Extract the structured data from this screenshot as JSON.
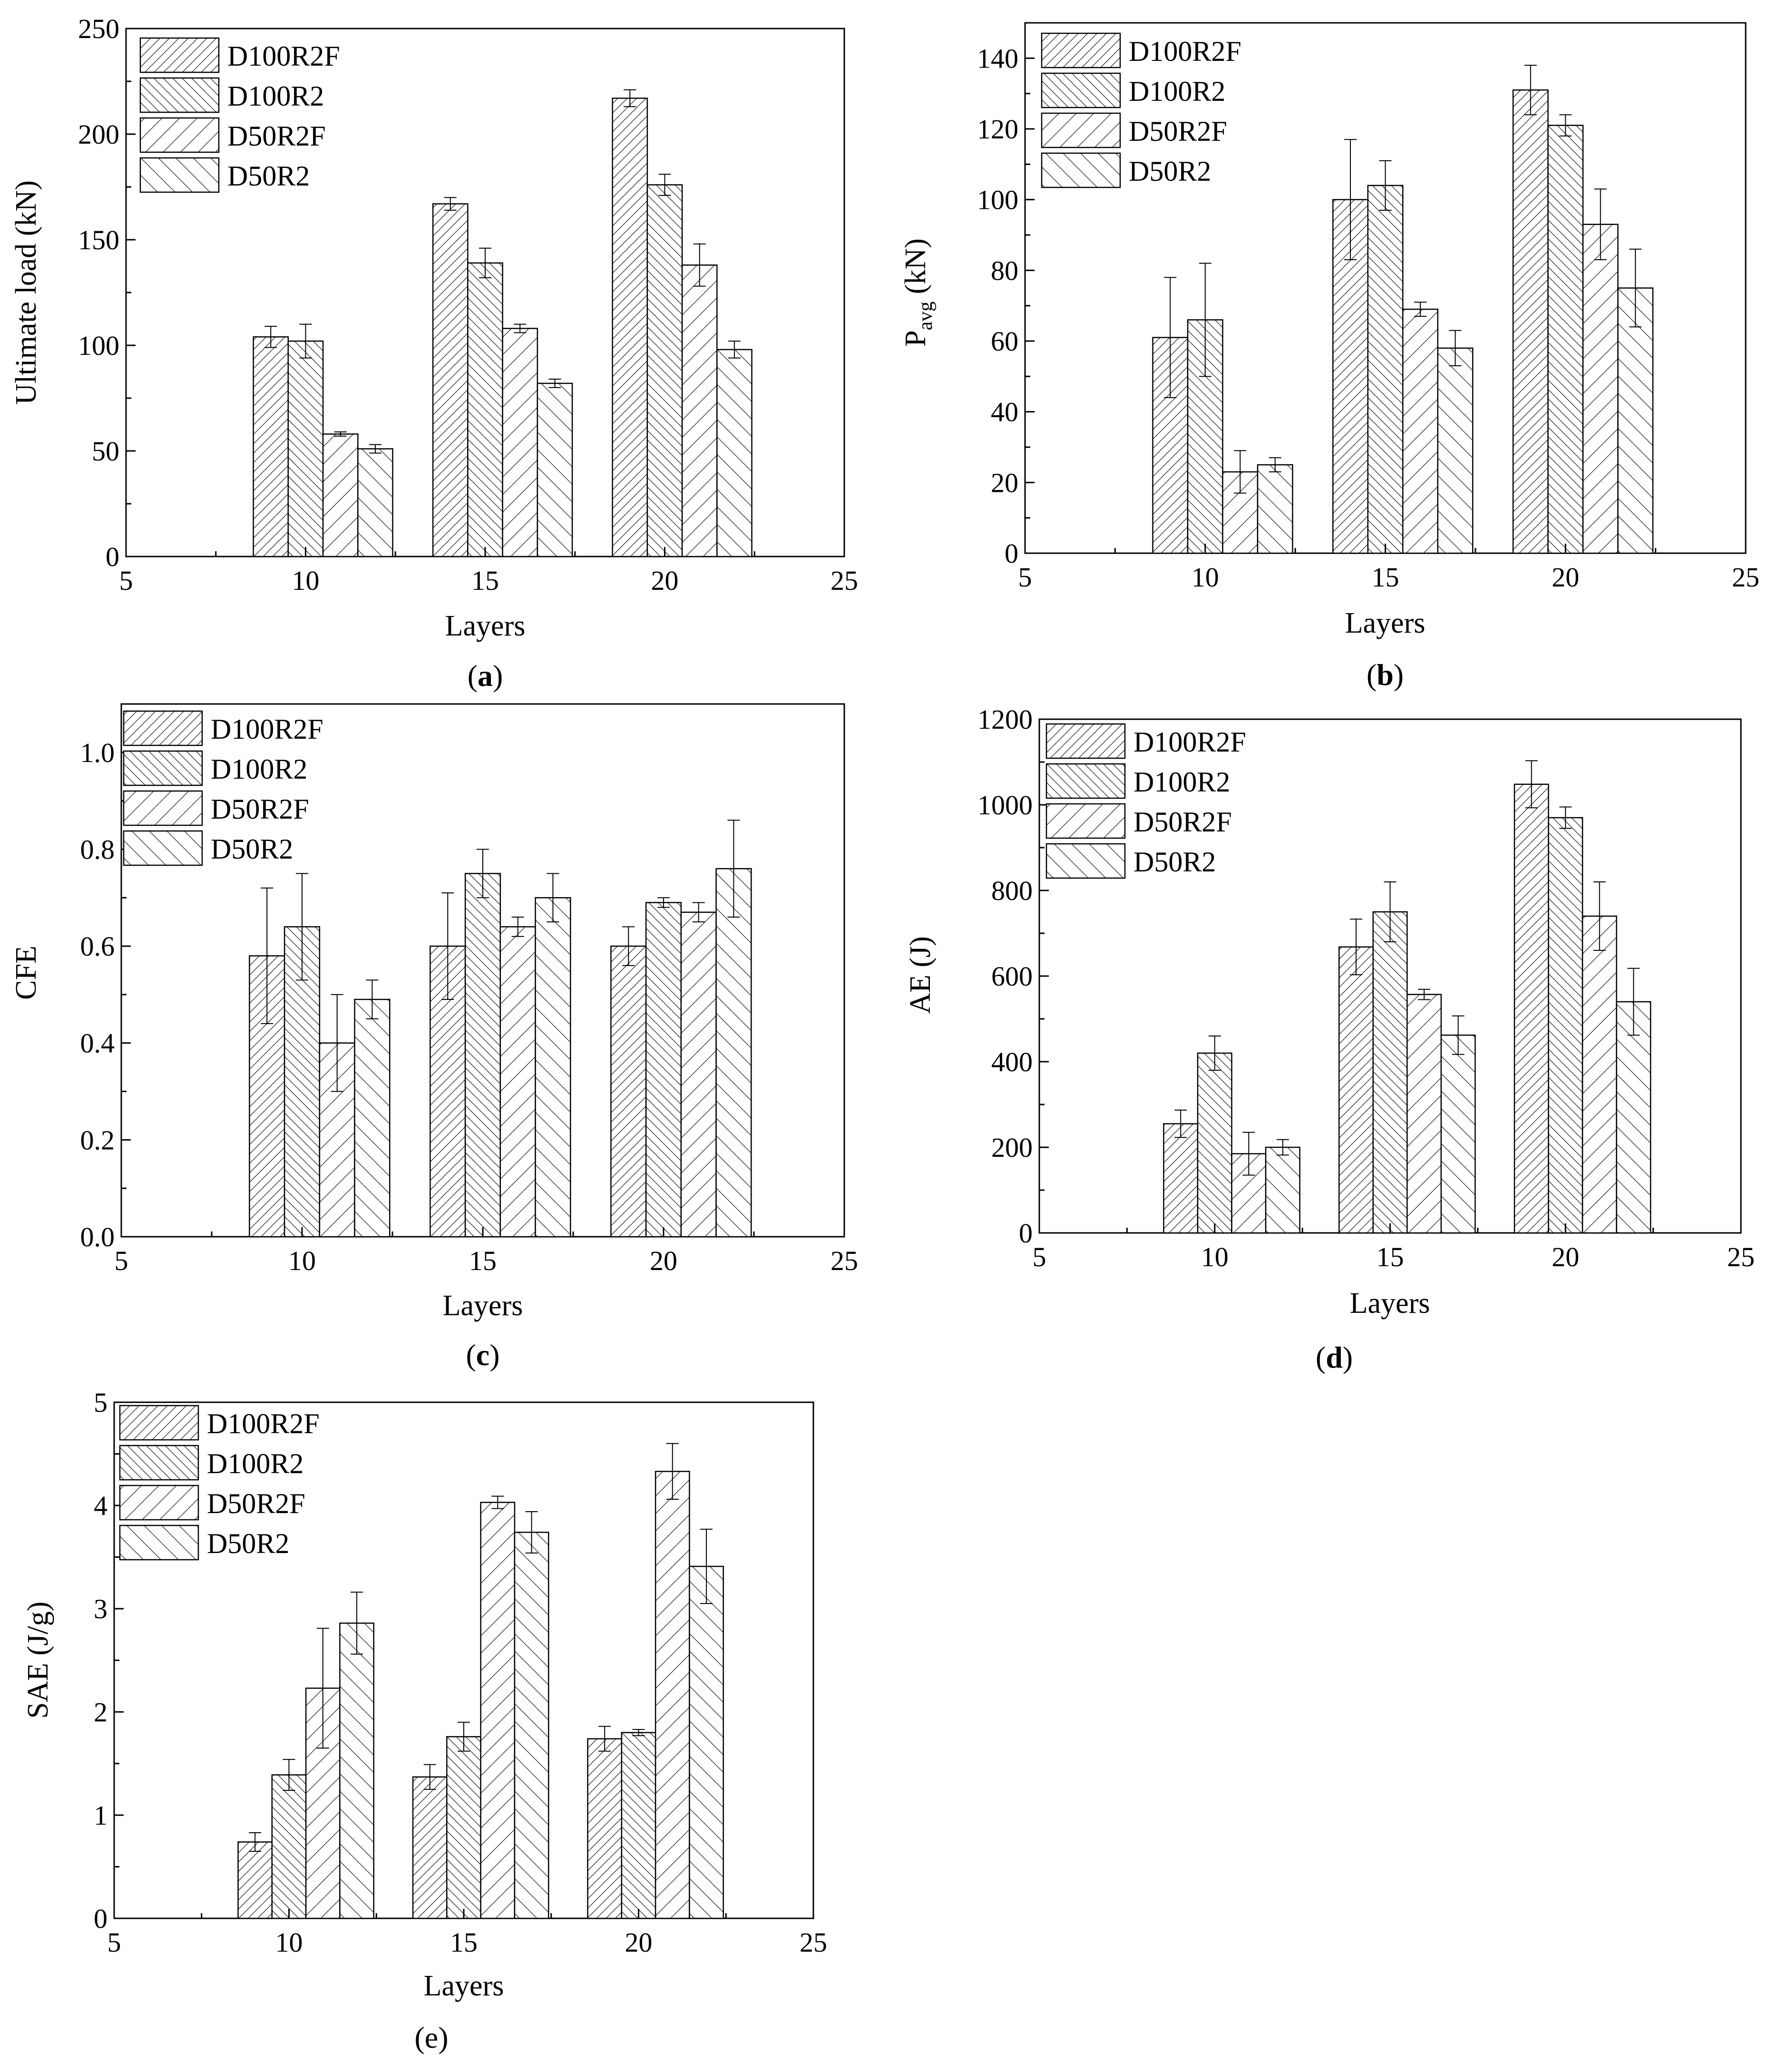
{
  "chart_data": [
    {
      "type": "bar",
      "panel_label": "a",
      "x_label": "Layers",
      "y_label": "Ultimate load (kN)",
      "x_range": [
        5,
        25
      ],
      "x_ticks": [
        5,
        10,
        15,
        20,
        25
      ],
      "y_range": [
        0,
        250
      ],
      "y_ticks": [
        0,
        50,
        100,
        150,
        200,
        250
      ],
      "categories": [
        10,
        15,
        20
      ],
      "series": [
        {
          "name": "D100R2F",
          "values": [
            104,
            167,
            217
          ],
          "errors": [
            5,
            3,
            4
          ]
        },
        {
          "name": "D100R2",
          "values": [
            102,
            139,
            176
          ],
          "errors": [
            8,
            7,
            5
          ]
        },
        {
          "name": "D50R2F",
          "values": [
            58,
            108,
            138
          ],
          "errors": [
            1,
            2,
            10
          ]
        },
        {
          "name": "D50R2",
          "values": [
            51,
            82,
            98
          ],
          "errors": [
            2,
            2,
            4
          ]
        }
      ]
    },
    {
      "type": "bar",
      "panel_label": "b",
      "x_label": "Layers",
      "y_label": "P",
      "y_label_sub": "avg",
      "y_label_unit": " (kN)",
      "x_range": [
        5,
        25
      ],
      "x_ticks": [
        5,
        10,
        15,
        20,
        25
      ],
      "y_range": [
        0,
        150
      ],
      "y_ticks": [
        0,
        20,
        40,
        60,
        80,
        100,
        120,
        140
      ],
      "categories": [
        10,
        15,
        20
      ],
      "series": [
        {
          "name": "D100R2F",
          "values": [
            61,
            100,
            131
          ],
          "errors": [
            17,
            17,
            7
          ]
        },
        {
          "name": "D100R2",
          "values": [
            66,
            104,
            121
          ],
          "errors": [
            16,
            7,
            3
          ]
        },
        {
          "name": "D50R2F",
          "values": [
            23,
            69,
            93
          ],
          "errors": [
            6,
            2,
            10
          ]
        },
        {
          "name": "D50R2",
          "values": [
            25,
            58,
            75
          ],
          "errors": [
            2,
            5,
            11
          ]
        }
      ]
    },
    {
      "type": "bar",
      "panel_label": "c",
      "x_label": "Layers",
      "y_label": "CFE",
      "x_range": [
        5,
        25
      ],
      "x_ticks": [
        5,
        10,
        15,
        20,
        25
      ],
      "y_range": [
        0,
        1.1
      ],
      "y_ticks": [
        "0.0",
        "0.2",
        "0.4",
        "0.6",
        "0.8",
        "1.0"
      ],
      "categories": [
        10,
        15,
        20
      ],
      "series": [
        {
          "name": "D100R2F",
          "values": [
            0.58,
            0.6,
            0.6
          ],
          "errors": [
            0.14,
            0.11,
            0.04
          ]
        },
        {
          "name": "D100R2",
          "values": [
            0.64,
            0.75,
            0.69
          ],
          "errors": [
            0.11,
            0.05,
            0.01
          ]
        },
        {
          "name": "D50R2F",
          "values": [
            0.4,
            0.64,
            0.67
          ],
          "errors": [
            0.1,
            0.02,
            0.02
          ]
        },
        {
          "name": "D50R2",
          "values": [
            0.49,
            0.7,
            0.76
          ],
          "errors": [
            0.04,
            0.05,
            0.1
          ]
        }
      ]
    },
    {
      "type": "bar",
      "panel_label": "d",
      "x_label": "Layers",
      "y_label": "AE (J)",
      "x_range": [
        5,
        25
      ],
      "x_ticks": [
        5,
        10,
        15,
        20,
        25
      ],
      "y_range": [
        0,
        1200
      ],
      "y_ticks": [
        0,
        200,
        400,
        600,
        800,
        1000,
        1200
      ],
      "categories": [
        10,
        15,
        20
      ],
      "series": [
        {
          "name": "D100R2F",
          "values": [
            255,
            668,
            1048
          ],
          "errors": [
            32,
            65,
            55
          ]
        },
        {
          "name": "D100R2",
          "values": [
            420,
            750,
            970
          ],
          "errors": [
            40,
            70,
            25
          ]
        },
        {
          "name": "D50R2F",
          "values": [
            185,
            557,
            740
          ],
          "errors": [
            50,
            12,
            80
          ]
        },
        {
          "name": "D50R2",
          "values": [
            200,
            462,
            540
          ],
          "errors": [
            18,
            45,
            78
          ]
        }
      ]
    },
    {
      "type": "bar",
      "panel_label": "e",
      "x_label": "Layers",
      "y_label": "SAE (J/g)",
      "x_range": [
        5,
        25
      ],
      "x_ticks": [
        5,
        10,
        15,
        20,
        25
      ],
      "y_range": [
        0,
        5
      ],
      "y_ticks": [
        0,
        1,
        2,
        3,
        4,
        5
      ],
      "categories": [
        10,
        15,
        20
      ],
      "series": [
        {
          "name": "D100R2F",
          "values": [
            0.74,
            1.37,
            1.74
          ],
          "errors": [
            0.09,
            0.12,
            0.12
          ]
        },
        {
          "name": "D100R2",
          "values": [
            1.39,
            1.76,
            1.8
          ],
          "errors": [
            0.15,
            0.14,
            0.03
          ]
        },
        {
          "name": "D50R2F",
          "values": [
            2.23,
            4.03,
            4.33
          ],
          "errors": [
            0.58,
            0.06,
            0.27
          ]
        },
        {
          "name": "D50R2",
          "values": [
            2.86,
            3.74,
            3.41
          ],
          "errors": [
            0.3,
            0.2,
            0.36
          ]
        }
      ]
    }
  ]
}
